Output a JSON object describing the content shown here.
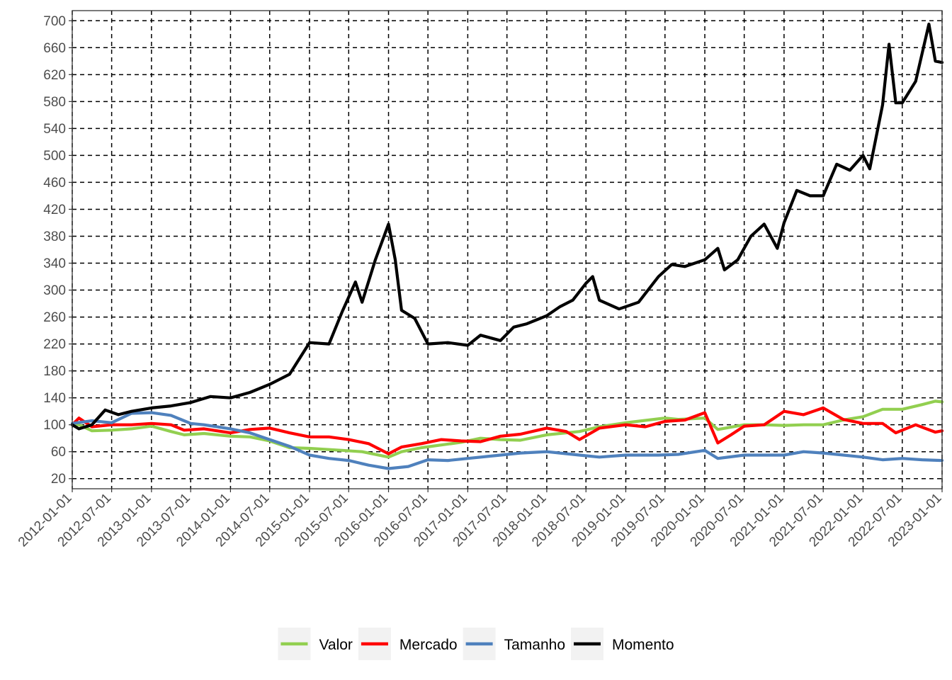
{
  "chart_data": {
    "type": "line",
    "title": "",
    "xlabel": "",
    "ylabel": "",
    "x_range": [
      "2012-01-01",
      "2023-01-01"
    ],
    "ylim": [
      5,
      715
    ],
    "y_ticks": [
      20,
      60,
      100,
      140,
      180,
      220,
      260,
      300,
      340,
      380,
      420,
      460,
      500,
      540,
      580,
      620,
      660,
      700
    ],
    "x_ticks": [
      "2012-01-01",
      "2012-07-01",
      "2013-01-01",
      "2013-07-01",
      "2014-01-01",
      "2014-07-01",
      "2015-01-01",
      "2015-07-01",
      "2016-01-01",
      "2016-07-01",
      "2017-01-01",
      "2017-07-01",
      "2018-01-01",
      "2018-07-01",
      "2019-01-01",
      "2019-07-01",
      "2020-01-01",
      "2020-07-01",
      "2021-01-01",
      "2021-07-01",
      "2022-01-01",
      "2022-07-01",
      "2023-01-01"
    ],
    "grid": true,
    "legend_position": "bottom",
    "series": [
      {
        "name": "Valor",
        "color": "#92cf50",
        "points": [
          [
            "2012-01-01",
            100
          ],
          [
            "2012-02-01",
            100
          ],
          [
            "2012-04-01",
            91
          ],
          [
            "2012-07-01",
            92
          ],
          [
            "2012-10-01",
            94
          ],
          [
            "2013-01-01",
            98
          ],
          [
            "2013-04-01",
            90
          ],
          [
            "2013-06-01",
            85
          ],
          [
            "2013-09-01",
            87
          ],
          [
            "2014-01-01",
            83
          ],
          [
            "2014-04-01",
            82
          ],
          [
            "2014-07-01",
            76
          ],
          [
            "2014-10-01",
            66
          ],
          [
            "2015-01-01",
            65
          ],
          [
            "2015-06-01",
            62
          ],
          [
            "2015-09-01",
            60
          ],
          [
            "2016-01-01",
            52
          ],
          [
            "2016-03-01",
            60
          ],
          [
            "2016-06-01",
            66
          ],
          [
            "2016-09-01",
            70
          ],
          [
            "2016-12-01",
            74
          ],
          [
            "2017-03-01",
            80
          ],
          [
            "2017-06-01",
            78
          ],
          [
            "2017-09-01",
            77
          ],
          [
            "2018-01-01",
            85
          ],
          [
            "2018-06-01",
            90
          ],
          [
            "2018-09-01",
            97
          ],
          [
            "2019-01-01",
            103
          ],
          [
            "2019-07-01",
            110
          ],
          [
            "2019-09-01",
            108
          ],
          [
            "2020-01-01",
            110
          ],
          [
            "2020-03-01",
            93
          ],
          [
            "2020-07-01",
            100
          ],
          [
            "2020-10-01",
            100
          ],
          [
            "2021-01-01",
            99
          ],
          [
            "2021-04-01",
            100
          ],
          [
            "2021-07-01",
            100
          ],
          [
            "2021-10-01",
            107
          ],
          [
            "2022-01-01",
            112
          ],
          [
            "2022-04-01",
            123
          ],
          [
            "2022-07-01",
            123
          ],
          [
            "2022-10-01",
            130
          ],
          [
            "2022-12-01",
            135
          ],
          [
            "2023-01-01",
            134
          ]
        ]
      },
      {
        "name": "Mercado",
        "color": "#ff0000",
        "points": [
          [
            "2012-01-01",
            100
          ],
          [
            "2012-02-01",
            110
          ],
          [
            "2012-04-01",
            97
          ],
          [
            "2012-07-01",
            100
          ],
          [
            "2012-10-01",
            100
          ],
          [
            "2013-01-01",
            102
          ],
          [
            "2013-04-01",
            100
          ],
          [
            "2013-06-01",
            92
          ],
          [
            "2013-09-01",
            94
          ],
          [
            "2014-01-01",
            88
          ],
          [
            "2014-04-01",
            93
          ],
          [
            "2014-07-01",
            95
          ],
          [
            "2014-10-01",
            88
          ],
          [
            "2015-01-01",
            82
          ],
          [
            "2015-04-01",
            82
          ],
          [
            "2015-07-01",
            78
          ],
          [
            "2015-10-01",
            72
          ],
          [
            "2016-01-01",
            57
          ],
          [
            "2016-03-01",
            67
          ],
          [
            "2016-06-01",
            72
          ],
          [
            "2016-09-01",
            78
          ],
          [
            "2016-12-01",
            76
          ],
          [
            "2017-03-01",
            75
          ],
          [
            "2017-06-01",
            83
          ],
          [
            "2017-09-01",
            86
          ],
          [
            "2018-01-01",
            95
          ],
          [
            "2018-04-01",
            90
          ],
          [
            "2018-06-01",
            78
          ],
          [
            "2018-09-01",
            95
          ],
          [
            "2019-01-01",
            100
          ],
          [
            "2019-04-01",
            97
          ],
          [
            "2019-07-01",
            105
          ],
          [
            "2019-10-01",
            107
          ],
          [
            "2020-01-01",
            118
          ],
          [
            "2020-03-01",
            73
          ],
          [
            "2020-05-01",
            85
          ],
          [
            "2020-07-01",
            98
          ],
          [
            "2020-10-01",
            100
          ],
          [
            "2021-01-01",
            120
          ],
          [
            "2021-04-01",
            115
          ],
          [
            "2021-07-01",
            125
          ],
          [
            "2021-10-01",
            108
          ],
          [
            "2022-01-01",
            102
          ],
          [
            "2022-04-01",
            102
          ],
          [
            "2022-06-01",
            88
          ],
          [
            "2022-09-01",
            100
          ],
          [
            "2022-12-01",
            89
          ],
          [
            "2023-01-01",
            91
          ]
        ]
      },
      {
        "name": "Tamanho",
        "color": "#4f81bd",
        "points": [
          [
            "2012-01-01",
            102
          ],
          [
            "2012-04-01",
            106
          ],
          [
            "2012-07-01",
            103
          ],
          [
            "2012-10-01",
            117
          ],
          [
            "2013-01-01",
            118
          ],
          [
            "2013-04-01",
            114
          ],
          [
            "2013-07-01",
            102
          ],
          [
            "2013-09-01",
            100
          ],
          [
            "2014-01-01",
            94
          ],
          [
            "2014-04-01",
            88
          ],
          [
            "2014-07-01",
            78
          ],
          [
            "2014-10-01",
            68
          ],
          [
            "2015-01-01",
            55
          ],
          [
            "2015-04-01",
            50
          ],
          [
            "2015-07-01",
            47
          ],
          [
            "2015-10-01",
            40
          ],
          [
            "2016-01-01",
            35
          ],
          [
            "2016-04-01",
            38
          ],
          [
            "2016-07-01",
            48
          ],
          [
            "2016-10-01",
            47
          ],
          [
            "2017-01-01",
            50
          ],
          [
            "2017-06-01",
            55
          ],
          [
            "2017-09-01",
            58
          ],
          [
            "2018-01-01",
            60
          ],
          [
            "2018-06-01",
            55
          ],
          [
            "2018-09-01",
            52
          ],
          [
            "2019-01-01",
            55
          ],
          [
            "2019-06-01",
            55
          ],
          [
            "2019-09-01",
            56
          ],
          [
            "2020-01-01",
            62
          ],
          [
            "2020-03-01",
            50
          ],
          [
            "2020-07-01",
            55
          ],
          [
            "2021-01-01",
            55
          ],
          [
            "2021-04-01",
            60
          ],
          [
            "2021-07-01",
            58
          ],
          [
            "2022-01-01",
            52
          ],
          [
            "2022-04-01",
            48
          ],
          [
            "2022-07-01",
            50
          ],
          [
            "2022-10-01",
            48
          ],
          [
            "2023-01-01",
            47
          ]
        ]
      },
      {
        "name": "Momento",
        "color": "#000000",
        "points": [
          [
            "2012-01-01",
            100
          ],
          [
            "2012-02-01",
            94
          ],
          [
            "2012-04-01",
            100
          ],
          [
            "2012-06-01",
            122
          ],
          [
            "2012-08-01",
            115
          ],
          [
            "2012-10-01",
            120
          ],
          [
            "2013-01-01",
            125
          ],
          [
            "2013-04-01",
            128
          ],
          [
            "2013-07-01",
            133
          ],
          [
            "2013-10-01",
            142
          ],
          [
            "2014-01-01",
            140
          ],
          [
            "2014-04-01",
            148
          ],
          [
            "2014-07-01",
            160
          ],
          [
            "2014-10-01",
            175
          ],
          [
            "2015-01-01",
            222
          ],
          [
            "2015-04-01",
            220
          ],
          [
            "2015-06-01",
            268
          ],
          [
            "2015-08-01",
            312
          ],
          [
            "2015-09-01",
            282
          ],
          [
            "2015-11-01",
            345
          ],
          [
            "2016-01-01",
            398
          ],
          [
            "2016-02-01",
            345
          ],
          [
            "2016-03-01",
            270
          ],
          [
            "2016-05-01",
            258
          ],
          [
            "2016-07-01",
            220
          ],
          [
            "2016-10-01",
            222
          ],
          [
            "2017-01-01",
            218
          ],
          [
            "2017-03-01",
            233
          ],
          [
            "2017-06-01",
            225
          ],
          [
            "2017-08-01",
            245
          ],
          [
            "2017-10-01",
            250
          ],
          [
            "2018-01-01",
            262
          ],
          [
            "2018-03-01",
            275
          ],
          [
            "2018-05-01",
            285
          ],
          [
            "2018-07-01",
            310
          ],
          [
            "2018-08-01",
            320
          ],
          [
            "2018-09-01",
            285
          ],
          [
            "2018-12-01",
            272
          ],
          [
            "2019-03-01",
            282
          ],
          [
            "2019-06-01",
            320
          ],
          [
            "2019-08-01",
            338
          ],
          [
            "2019-10-01",
            335
          ],
          [
            "2020-01-01",
            345
          ],
          [
            "2020-03-01",
            362
          ],
          [
            "2020-04-01",
            330
          ],
          [
            "2020-06-01",
            345
          ],
          [
            "2020-08-01",
            380
          ],
          [
            "2020-10-01",
            398
          ],
          [
            "2020-12-01",
            362
          ],
          [
            "2021-01-01",
            400
          ],
          [
            "2021-03-01",
            448
          ],
          [
            "2021-05-01",
            440
          ],
          [
            "2021-07-01",
            440
          ],
          [
            "2021-09-01",
            487
          ],
          [
            "2021-11-01",
            478
          ],
          [
            "2022-01-01",
            500
          ],
          [
            "2022-02-01",
            480
          ],
          [
            "2022-04-01",
            575
          ],
          [
            "2022-05-01",
            665
          ],
          [
            "2022-06-01",
            578
          ],
          [
            "2022-07-01",
            578
          ],
          [
            "2022-09-01",
            610
          ],
          [
            "2022-11-01",
            695
          ],
          [
            "2022-12-01",
            640
          ],
          [
            "2023-01-01",
            638
          ]
        ]
      }
    ]
  }
}
